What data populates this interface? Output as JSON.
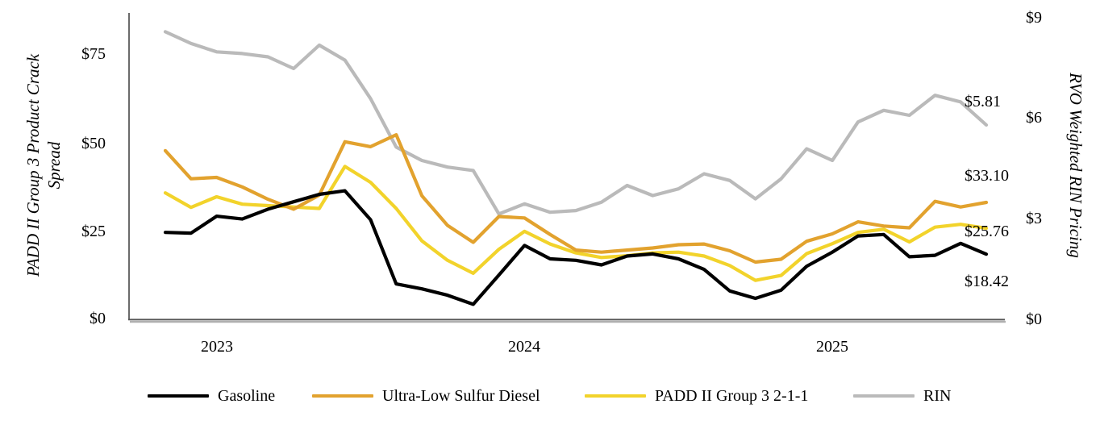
{
  "chart_data": {
    "type": "line",
    "x_months": [
      "2022-11",
      "2022-12",
      "2023-01",
      "2023-02",
      "2023-03",
      "2023-04",
      "2023-05",
      "2023-06",
      "2023-07",
      "2023-08",
      "2023-09",
      "2023-10",
      "2023-11",
      "2023-12",
      "2024-01",
      "2024-02",
      "2024-03",
      "2024-04",
      "2024-05",
      "2024-06",
      "2024-07",
      "2024-08",
      "2024-09",
      "2024-10",
      "2024-11",
      "2024-12",
      "2025-01",
      "2025-02",
      "2025-03",
      "2025-04",
      "2025-05",
      "2025-06",
      "2025-07"
    ],
    "x_tick_labels": [
      "2023",
      "2024",
      "2025"
    ],
    "grid": "off",
    "left_axis": {
      "title": "PADD II Group 3 Product Crack Spread",
      "title_line1": "PADD II Group 3 Product Crack",
      "title_line2": "Spread",
      "ticks": [
        "$75",
        "$50",
        "$25",
        "$0"
      ],
      "range": [
        0,
        90
      ]
    },
    "right_axis": {
      "title": "RVO Weighted RIN Pricing",
      "ticks": [
        "$9",
        "$6",
        "$3",
        "$0"
      ],
      "range": [
        0,
        9.2
      ]
    },
    "legend_position": "bottom",
    "series": [
      {
        "name": "Gasoline",
        "color": "#000000",
        "axis": "left",
        "end_label": "$18.42",
        "values": [
          24.6,
          24.4,
          29.2,
          28.4,
          31.2,
          33.3,
          35.4,
          36.4,
          28.2,
          10.0,
          8.6,
          6.8,
          4.2,
          12.5,
          20.9,
          17.1,
          16.7,
          15.4,
          17.9,
          18.5,
          17.1,
          14.1,
          8.0,
          5.9,
          8.2,
          15.0,
          19.0,
          23.6,
          24.0,
          17.7,
          18.1,
          21.5,
          18.42
        ]
      },
      {
        "name": "Ultra-Low Sulfur Diesel",
        "color": "#E2A22E",
        "axis": "left",
        "end_label": "$33.10",
        "values": [
          47.8,
          39.8,
          40.2,
          37.5,
          34.0,
          31.2,
          35.2,
          50.3,
          48.9,
          52.3,
          35.0,
          26.6,
          21.8,
          29.1,
          28.7,
          24.0,
          19.6,
          19.0,
          19.6,
          20.2,
          21.1,
          21.3,
          19.4,
          16.2,
          17.0,
          22.1,
          24.2,
          27.6,
          26.4,
          25.9,
          33.4,
          31.8,
          33.1
        ]
      },
      {
        "name": "PADD II Group 3 2-1-1",
        "color": "#F2D32B",
        "axis": "left",
        "end_label": "$25.76",
        "values": [
          35.8,
          31.7,
          34.7,
          32.6,
          32.2,
          31.8,
          31.4,
          43.3,
          38.8,
          31.4,
          22.2,
          16.7,
          13.0,
          19.8,
          24.9,
          21.3,
          18.8,
          17.5,
          18.0,
          18.8,
          19.0,
          17.9,
          15.2,
          11.0,
          12.4,
          18.6,
          21.4,
          24.6,
          25.5,
          21.9,
          26.1,
          26.9,
          25.76
        ]
      },
      {
        "name": "RIN",
        "color": "#BABABA",
        "axis": "right",
        "end_label": "$5.81",
        "values": [
          8.6,
          8.25,
          8.0,
          7.95,
          7.85,
          7.5,
          8.2,
          7.75,
          6.6,
          5.15,
          4.75,
          4.55,
          4.45,
          3.15,
          3.45,
          3.2,
          3.25,
          3.5,
          4.0,
          3.7,
          3.9,
          4.35,
          4.15,
          3.6,
          4.2,
          5.1,
          4.75,
          5.9,
          6.25,
          6.1,
          6.7,
          6.5,
          5.81
        ]
      }
    ]
  }
}
